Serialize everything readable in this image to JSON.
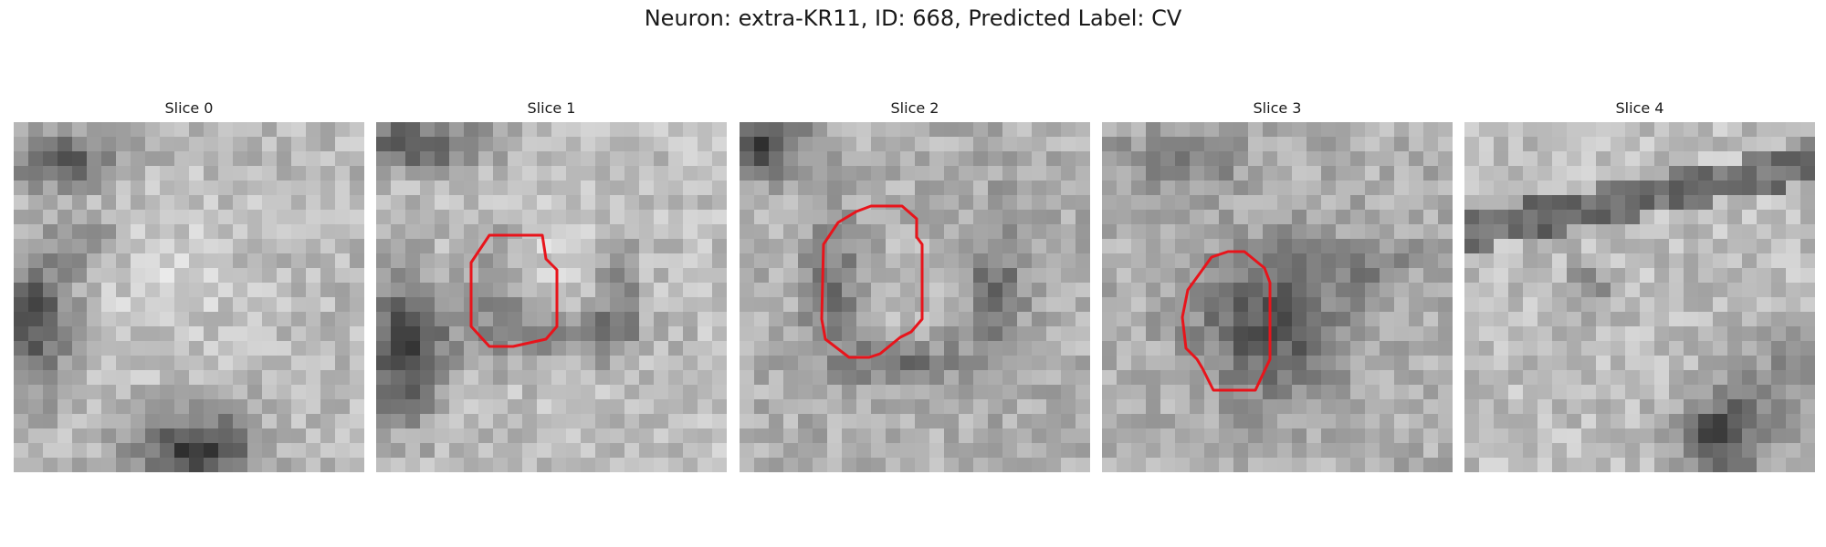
{
  "figure": {
    "title": "Neuron: extra-KR11, ID: 668, Predicted Label: CV"
  },
  "panels": [
    {
      "title": "Slice 0",
      "has_outline": false
    },
    {
      "title": "Slice 1",
      "has_outline": true
    },
    {
      "title": "Slice 2",
      "has_outline": true
    },
    {
      "title": "Slice 3",
      "has_outline": true
    },
    {
      "title": "Slice 4",
      "has_outline": false
    }
  ],
  "colors": {
    "outline": "#e8141b",
    "background": "#ffffff"
  }
}
